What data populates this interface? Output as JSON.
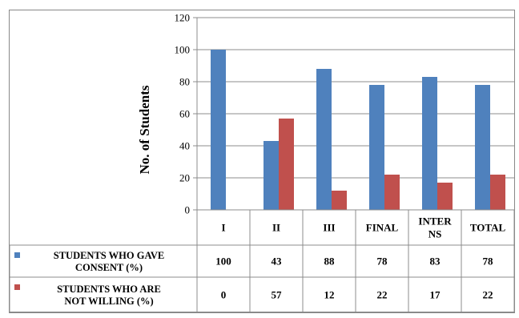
{
  "chart_data": {
    "type": "bar",
    "title": "",
    "xlabel": "",
    "ylabel": "No. of Students",
    "ylim": [
      0,
      120
    ],
    "yticks": [
      0,
      20,
      40,
      60,
      80,
      100,
      120
    ],
    "grid": true,
    "legend_placement": "bottom-left data table",
    "categories": [
      [
        "I"
      ],
      [
        "II"
      ],
      [
        "III"
      ],
      [
        "FINAL"
      ],
      [
        "INTER",
        "NS"
      ],
      [
        "TOTAL"
      ]
    ],
    "series": [
      {
        "name": [
          "STUDENTS WHO GAVE",
          "CONSENT (%)"
        ],
        "color": "#4f81bd",
        "values": [
          100,
          43,
          88,
          78,
          83,
          78
        ]
      },
      {
        "name": [
          "STUDENTS WHO ARE",
          "NOT WILLING (%)"
        ],
        "color": "#c0504d",
        "values": [
          0,
          57,
          12,
          22,
          17,
          22
        ]
      }
    ]
  }
}
